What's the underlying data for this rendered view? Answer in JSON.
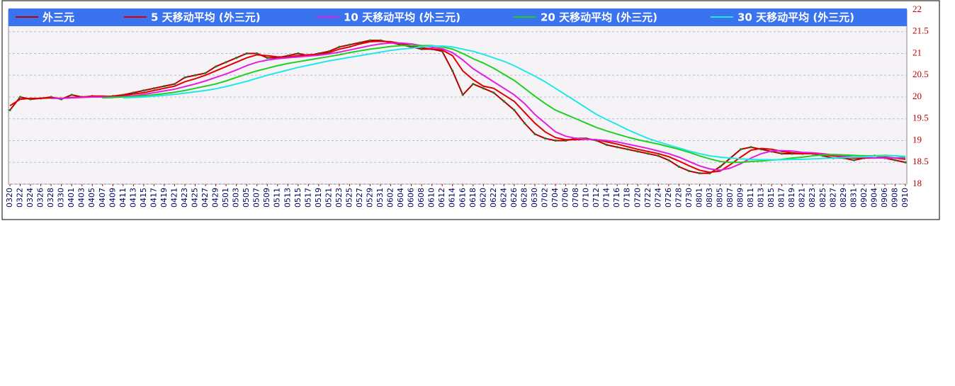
{
  "chart_data": {
    "type": "line",
    "categories": [
      "0320",
      "0322",
      "0324",
      "0326",
      "0328",
      "0330",
      "0401",
      "0403",
      "0405",
      "0407",
      "0409",
      "0411",
      "0413",
      "0415",
      "0417",
      "0419",
      "0421",
      "0423",
      "0425",
      "0427",
      "0429",
      "0501",
      "0503",
      "0505",
      "0507",
      "0509",
      "0511",
      "0513",
      "0515",
      "0517",
      "0519",
      "0521",
      "0523",
      "0525",
      "0527",
      "0529",
      "0531",
      "0602",
      "0604",
      "0606",
      "0608",
      "0610",
      "0612",
      "0614",
      "0616",
      "0618",
      "0620",
      "0622",
      "0624",
      "0626",
      "0628",
      "0630",
      "0702",
      "0704",
      "0706",
      "0708",
      "0710",
      "0712",
      "0714",
      "0716",
      "0718",
      "0720",
      "0722",
      "0724",
      "0726",
      "0728",
      "0730",
      "0801",
      "0803",
      "0805",
      "0807",
      "0809",
      "0811",
      "0813",
      "0815",
      "0817",
      "0819",
      "0821",
      "0823",
      "0825",
      "0827",
      "0829",
      "0831",
      "0902",
      "0904",
      "0906",
      "0908",
      "0910"
    ],
    "series": [
      {
        "name": "外三元",
        "color": "#b00000",
        "values": [
          19.7,
          20.0,
          19.95,
          19.97,
          20.0,
          19.95,
          20.05,
          20.0,
          20.02,
          20.0,
          20.02,
          20.05,
          20.1,
          20.15,
          20.2,
          20.25,
          20.3,
          20.45,
          20.5,
          20.55,
          20.7,
          20.8,
          20.9,
          21.0,
          21.0,
          20.9,
          20.9,
          20.95,
          21.0,
          20.95,
          21.0,
          21.05,
          21.15,
          21.2,
          21.25,
          21.3,
          21.3,
          21.25,
          21.2,
          21.15,
          21.1,
          21.1,
          21.05,
          20.6,
          20.05,
          20.3,
          20.2,
          20.1,
          19.9,
          19.7,
          19.4,
          19.15,
          19.05,
          19.0,
          19.0,
          19.05,
          19.05,
          19.0,
          18.9,
          18.85,
          18.8,
          18.75,
          18.7,
          18.65,
          18.55,
          18.4,
          18.3,
          18.25,
          18.25,
          18.4,
          18.6,
          18.8,
          18.85,
          18.8,
          18.75,
          18.7,
          18.7,
          18.7,
          18.7,
          18.65,
          18.6,
          18.6,
          18.55,
          18.6,
          18.65,
          18.6,
          18.55,
          18.5
        ]
      },
      {
        "name": "5 天移动平均 (外三元)",
        "color": "#e00000",
        "values": [
          19.8,
          19.95,
          19.97,
          19.97,
          19.98,
          19.97,
          19.99,
          20.0,
          20.02,
          20.02,
          20.01,
          20.03,
          20.07,
          20.1,
          20.15,
          20.2,
          20.25,
          20.35,
          20.42,
          20.5,
          20.6,
          20.7,
          20.8,
          20.9,
          20.97,
          20.95,
          20.92,
          20.92,
          20.95,
          20.97,
          20.98,
          21.02,
          21.1,
          21.15,
          21.22,
          21.27,
          21.28,
          21.27,
          21.23,
          21.18,
          21.13,
          21.1,
          21.08,
          20.95,
          20.6,
          20.4,
          20.25,
          20.2,
          20.05,
          19.9,
          19.65,
          19.4,
          19.2,
          19.07,
          19.02,
          19.02,
          19.03,
          19.02,
          18.97,
          18.92,
          18.86,
          18.8,
          18.75,
          18.7,
          18.63,
          18.53,
          18.42,
          18.32,
          18.27,
          18.3,
          18.45,
          18.62,
          18.78,
          18.82,
          18.8,
          18.75,
          18.72,
          18.7,
          18.7,
          18.68,
          18.65,
          18.62,
          18.6,
          18.6,
          18.6,
          18.62,
          18.6,
          18.57
        ]
      },
      {
        "name": "10 天移动平均 (外三元)",
        "color": "#e020e0",
        "values": [
          null,
          null,
          null,
          null,
          19.97,
          19.97,
          19.98,
          19.99,
          20.0,
          20.0,
          20.0,
          20.01,
          20.03,
          20.06,
          20.1,
          20.14,
          20.18,
          20.24,
          20.3,
          20.37,
          20.45,
          20.53,
          20.62,
          20.72,
          20.8,
          20.85,
          20.88,
          20.9,
          20.92,
          20.94,
          20.96,
          20.99,
          21.03,
          21.08,
          21.13,
          21.18,
          21.22,
          21.24,
          21.24,
          21.22,
          21.18,
          21.14,
          21.11,
          21.02,
          20.85,
          20.65,
          20.5,
          20.35,
          20.2,
          20.05,
          19.85,
          19.6,
          19.4,
          19.2,
          19.1,
          19.05,
          19.03,
          19.02,
          19.0,
          18.97,
          18.92,
          18.87,
          18.82,
          18.76,
          18.7,
          18.62,
          18.52,
          18.42,
          18.35,
          18.32,
          18.37,
          18.47,
          18.6,
          18.7,
          18.76,
          18.77,
          18.76,
          18.73,
          18.72,
          18.7,
          18.67,
          18.65,
          18.62,
          18.62,
          18.6,
          18.6,
          18.6,
          18.6
        ]
      },
      {
        "name": "20 天移动平均 (外三元)",
        "color": "#20d020",
        "values": [
          null,
          null,
          null,
          null,
          null,
          null,
          null,
          null,
          null,
          19.98,
          19.99,
          20.0,
          20.01,
          20.03,
          20.05,
          20.08,
          20.11,
          20.15,
          20.2,
          20.25,
          20.3,
          20.37,
          20.45,
          20.53,
          20.6,
          20.66,
          20.72,
          20.77,
          20.81,
          20.85,
          20.89,
          20.93,
          20.97,
          21.02,
          21.06,
          21.1,
          21.13,
          21.16,
          21.18,
          21.18,
          21.18,
          21.18,
          21.15,
          21.1,
          21.0,
          20.88,
          20.78,
          20.66,
          20.52,
          20.38,
          20.2,
          20.02,
          19.85,
          19.7,
          19.6,
          19.5,
          19.4,
          19.3,
          19.22,
          19.15,
          19.08,
          19.02,
          18.97,
          18.92,
          18.86,
          18.8,
          18.73,
          18.65,
          18.58,
          18.52,
          18.5,
          18.5,
          18.52,
          18.53,
          18.55,
          18.57,
          18.6,
          18.62,
          18.65,
          18.67,
          18.68,
          18.67,
          18.66,
          18.65,
          18.65,
          18.66,
          18.65,
          18.62
        ]
      },
      {
        "name": "30 天移动平均 (外三元)",
        "color": "#20e8e8",
        "values": [
          null,
          null,
          null,
          null,
          null,
          null,
          null,
          null,
          null,
          null,
          null,
          19.98,
          19.99,
          20.0,
          20.02,
          20.04,
          20.06,
          20.09,
          20.12,
          20.15,
          20.19,
          20.24,
          20.3,
          20.36,
          20.43,
          20.5,
          20.56,
          20.62,
          20.68,
          20.73,
          20.78,
          20.83,
          20.87,
          20.91,
          20.95,
          20.99,
          21.03,
          21.07,
          21.1,
          21.12,
          21.15,
          21.17,
          21.17,
          21.15,
          21.1,
          21.05,
          20.98,
          20.9,
          20.82,
          20.72,
          20.6,
          20.48,
          20.35,
          20.2,
          20.05,
          19.9,
          19.75,
          19.6,
          19.48,
          19.37,
          19.25,
          19.15,
          19.05,
          18.97,
          18.9,
          18.83,
          18.76,
          18.7,
          18.65,
          18.62,
          18.6,
          18.58,
          18.57,
          18.56,
          18.56,
          18.56,
          18.57,
          18.57,
          18.58,
          18.59,
          18.6,
          18.61,
          18.62,
          18.63,
          18.64,
          18.65,
          18.65,
          18.64
        ]
      }
    ],
    "ylim": [
      18,
      22
    ],
    "yticks": [
      18,
      18.5,
      19,
      19.5,
      20,
      20.5,
      21,
      21.5,
      22
    ],
    "grid": true,
    "legend": "top"
  }
}
